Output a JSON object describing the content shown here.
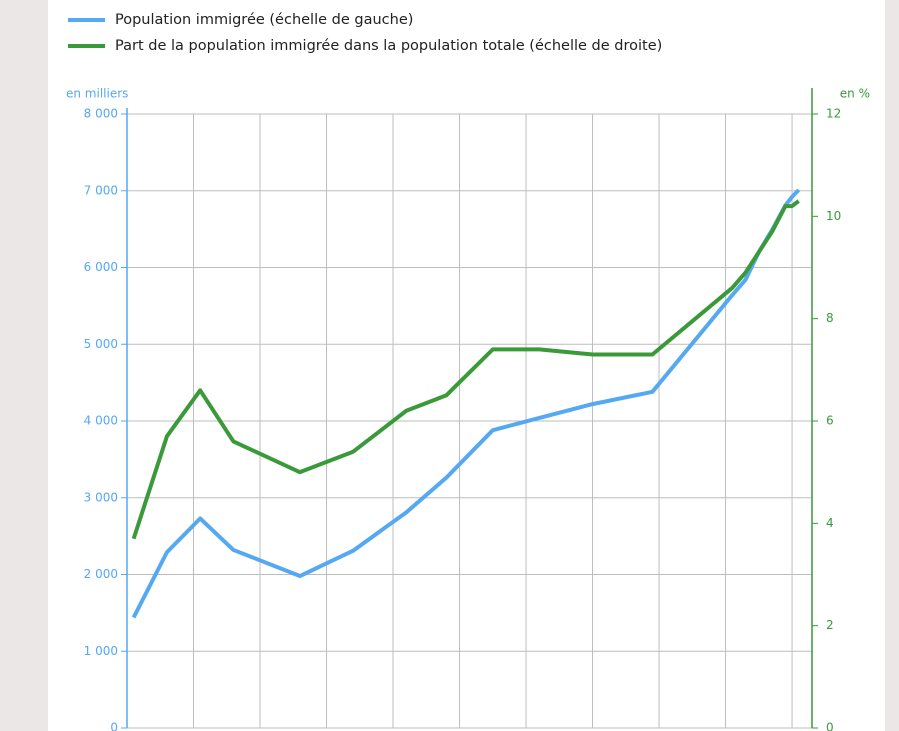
{
  "chart_data": {
    "type": "line",
    "series": [
      {
        "name": "Population immigrée (échelle de gauche)",
        "color": "#55a8f2",
        "axis": "y",
        "values": [
          1440,
          2290,
          2730,
          2320,
          1980,
          2310,
          2810,
          3260,
          3880,
          4040,
          4220,
          4380,
          5640,
          5840,
          6200,
          6490,
          6810,
          6920,
          7010
        ]
      },
      {
        "name": "Part de la population immigrée dans la population totale (échelle de droite)",
        "color": "#3a9a3a",
        "axis": "y2",
        "values": [
          3.7,
          5.7,
          6.6,
          5.6,
          5.0,
          5.4,
          6.2,
          6.5,
          7.4,
          7.4,
          7.3,
          7.3,
          8.6,
          8.9,
          9.3,
          9.7,
          10.2,
          10.2,
          10.3
        ]
      }
    ],
    "x": [
      1921,
      1926,
      1931,
      1936,
      1946,
      1954,
      1962,
      1968,
      1975,
      1982,
      1990,
      1999,
      2011,
      2013,
      2015,
      2017,
      2019,
      2020,
      2021
    ],
    "xlim": [
      1920,
      2023
    ],
    "xticks": [
      1920,
      1930,
      1940,
      1950,
      1960,
      1970,
      1980,
      1990,
      2000,
      2010,
      2020
    ],
    "ylabel": "en milliers",
    "y2label": "en %",
    "ylim": [
      0,
      8000
    ],
    "yticks": [
      0,
      {
        "value": 1000,
        "label": "1 000"
      },
      {
        "value": 2000,
        "label": "2 000"
      },
      {
        "value": 3000,
        "label": "3 000"
      },
      {
        "value": 4000,
        "label": "4 000"
      },
      {
        "value": 5000,
        "label": "5 000"
      },
      {
        "value": 6000,
        "label": "6 000"
      },
      {
        "value": 7000,
        "label": "7 000"
      },
      {
        "value": 8000,
        "label": "8 000"
      }
    ],
    "y2lim": [
      0,
      12
    ],
    "y2ticks": [
      0,
      2,
      4,
      6,
      8,
      10,
      12
    ],
    "grid": true
  }
}
